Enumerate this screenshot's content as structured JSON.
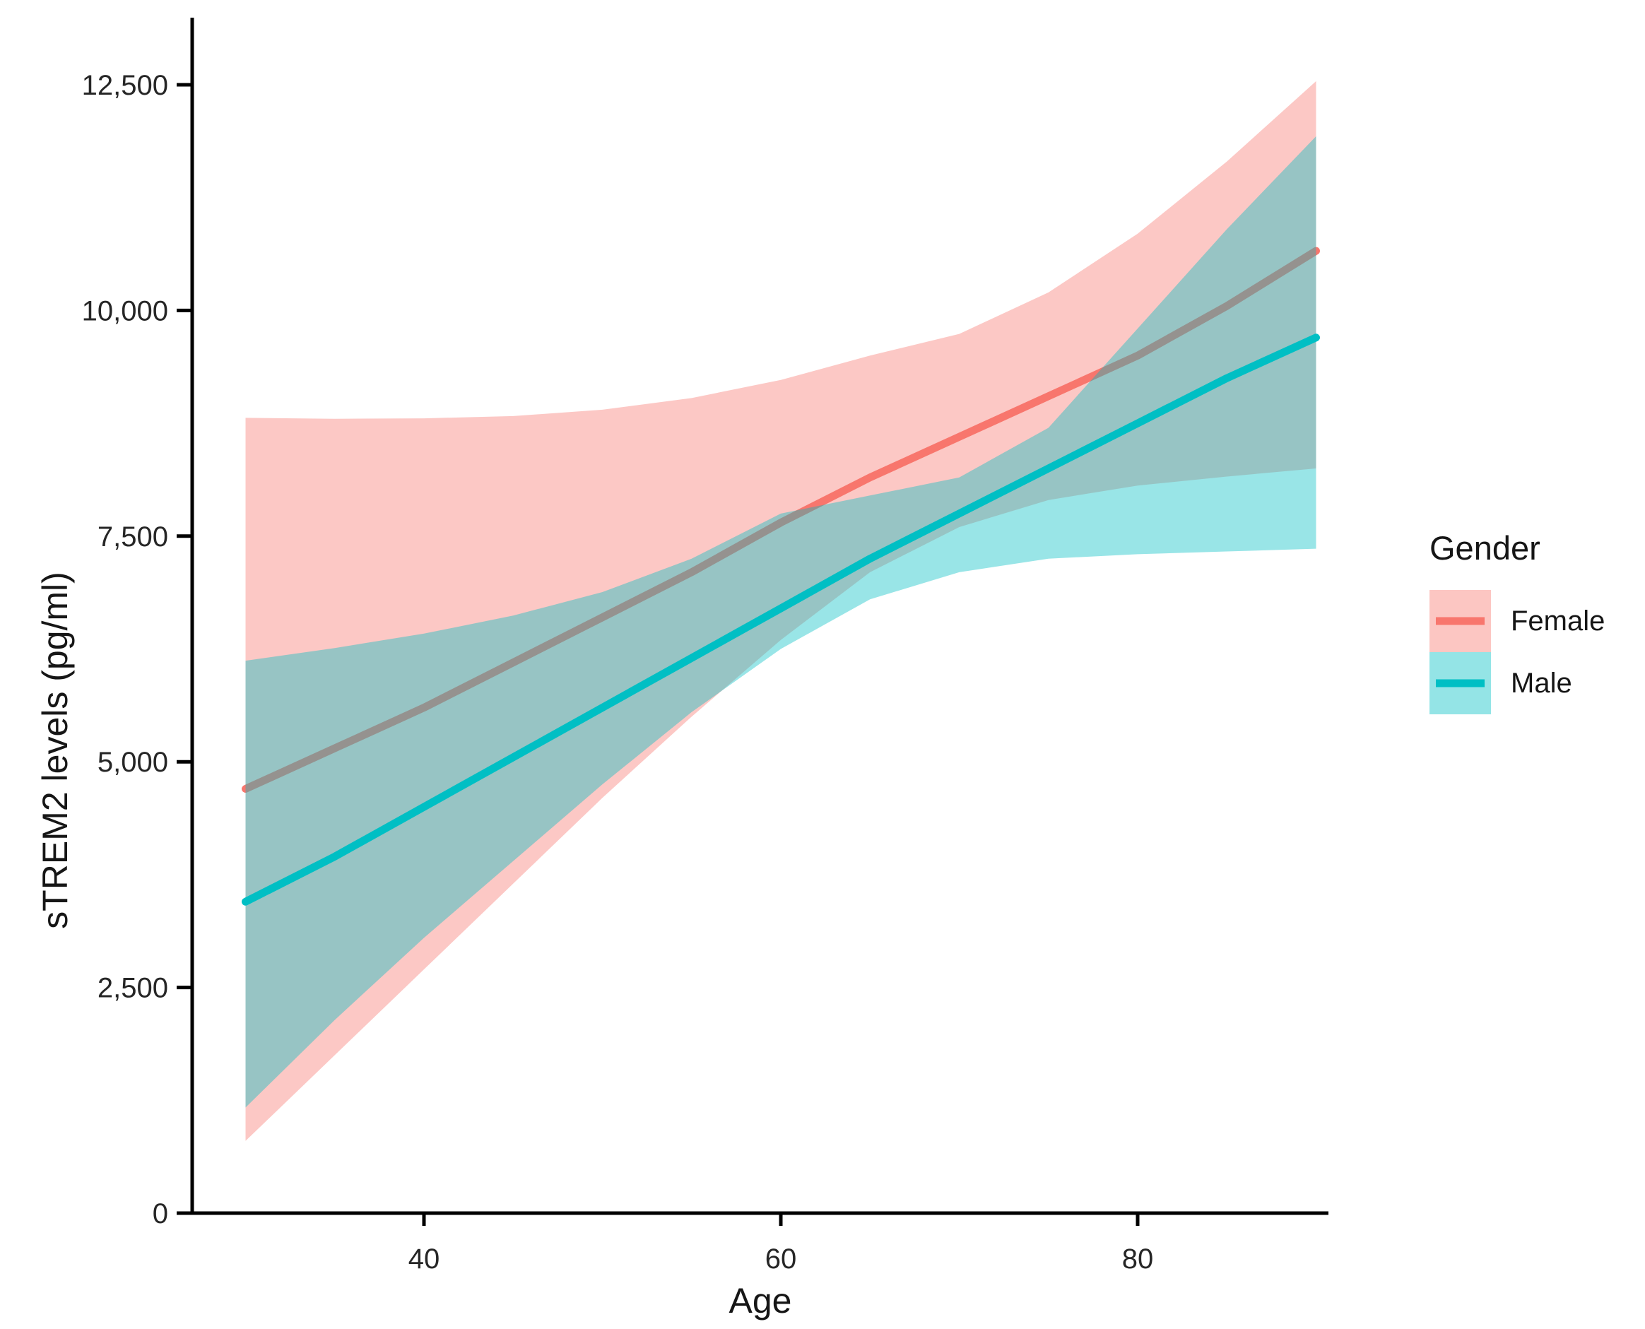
{
  "colors": {
    "female": "#F8766D",
    "male": "#00BFC4",
    "axis": "#000000",
    "tick_text": "#262626",
    "background": "#FFFFFF"
  },
  "legend": {
    "title": "Gender",
    "items": [
      {
        "label": "Female",
        "color": "#F8766D"
      },
      {
        "label": "Male",
        "color": "#00BFC4"
      }
    ]
  },
  "chart_data": {
    "type": "line",
    "title": "",
    "xlabel": "Age",
    "ylabel": "sTREM2 levels (pg/ml)",
    "xlim": [
      27,
      91
    ],
    "ylim": [
      0,
      13100
    ],
    "grid": false,
    "legend_position": "right",
    "ribbon_alpha": 0.4,
    "x": [
      30,
      35,
      40,
      45,
      50,
      55,
      60,
      65,
      70,
      75,
      80,
      85,
      90
    ],
    "x_ticks": [
      {
        "value": 40,
        "label": "40"
      },
      {
        "value": 60,
        "label": "60"
      },
      {
        "value": 80,
        "label": "80"
      }
    ],
    "y_ticks": [
      {
        "value": 0,
        "label": "0"
      },
      {
        "value": 2500,
        "label": "2,500"
      },
      {
        "value": 5000,
        "label": "5,000"
      },
      {
        "value": 7500,
        "label": "7,500"
      },
      {
        "value": 10000,
        "label": "10,000"
      },
      {
        "value": 12500,
        "label": "12,500"
      }
    ],
    "series": [
      {
        "name": "Female",
        "color": "#F8766D",
        "values": [
          4700,
          5150,
          5600,
          6100,
          6600,
          7100,
          7650,
          8150,
          8600,
          9050,
          9500,
          10050,
          10660
        ],
        "ci_upper": [
          8810,
          8800,
          8805,
          8830,
          8900,
          9030,
          9230,
          9500,
          9740,
          10200,
          10850,
          11650,
          12540
        ],
        "ci_lower": [
          800,
          1750,
          2700,
          3650,
          4600,
          5500,
          6350,
          7100,
          7600,
          7900,
          8060,
          8160,
          8250
        ]
      },
      {
        "name": "Male",
        "color": "#00BFC4",
        "values": [
          3450,
          3950,
          4500,
          5050,
          5600,
          6150,
          6700,
          7250,
          7750,
          8250,
          8750,
          9250,
          9700
        ],
        "ci_upper": [
          6120,
          6260,
          6420,
          6620,
          6880,
          7250,
          7750,
          7950,
          8150,
          8700,
          9800,
          10900,
          11930
        ],
        "ci_lower": [
          1170,
          2140,
          3050,
          3900,
          4750,
          5550,
          6250,
          6800,
          7100,
          7250,
          7300,
          7330,
          7360
        ]
      }
    ]
  }
}
